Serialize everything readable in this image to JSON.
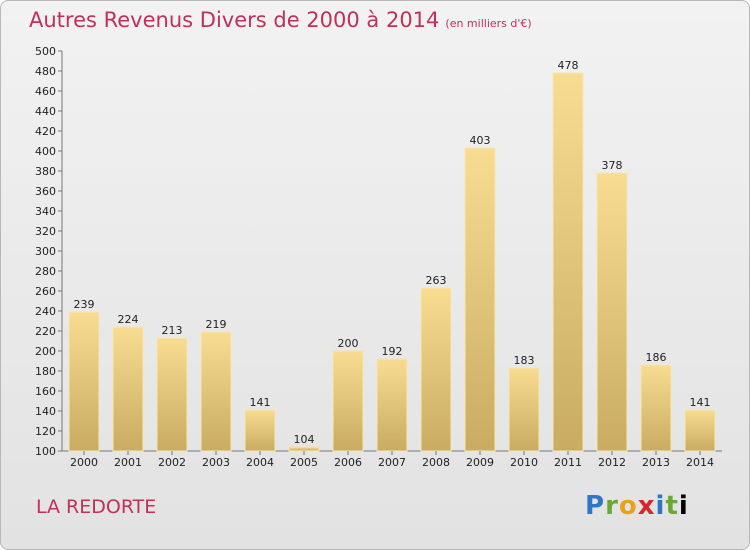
{
  "header": {
    "title": "Autres Revenus Divers de 2000 à 2014",
    "subtitle": "(en milliers d'€)"
  },
  "footer": {
    "place": "LA REDORTE",
    "logo": [
      "P",
      "r",
      "o",
      "x",
      "i",
      "t",
      "i"
    ]
  },
  "colors": {
    "title": "#c0305a",
    "bar_light": "#f7dc92",
    "bar_dark": "#c9ac62",
    "bar_border": "#f6e6b4"
  },
  "chart_data": {
    "type": "bar",
    "categories": [
      "2000",
      "2001",
      "2002",
      "2003",
      "2004",
      "2005",
      "2006",
      "2007",
      "2008",
      "2009",
      "2010",
      "2011",
      "2012",
      "2013",
      "2014"
    ],
    "values": [
      239,
      224,
      213,
      219,
      141,
      104,
      200,
      192,
      263,
      403,
      183,
      478,
      378,
      186,
      141
    ],
    "title": "Autres Revenus Divers de 2000 à 2014",
    "subtitle": "(en milliers d'€)",
    "ylim": [
      100,
      500
    ],
    "yticks": [
      100,
      120,
      140,
      160,
      180,
      200,
      220,
      240,
      260,
      280,
      300,
      320,
      340,
      360,
      380,
      400,
      420,
      440,
      460,
      480,
      500
    ],
    "grid": false,
    "legend": "none"
  }
}
